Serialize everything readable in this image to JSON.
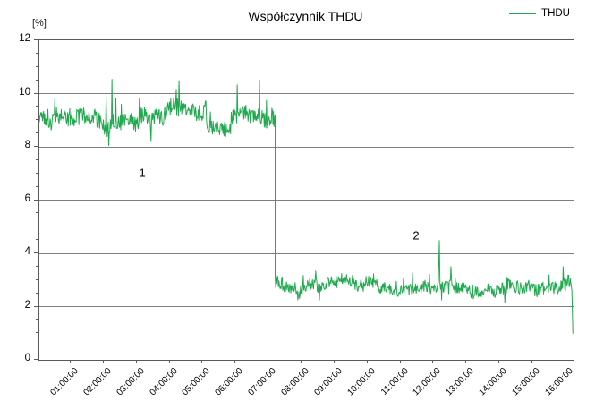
{
  "chart": {
    "title": "Współczynnik THDU",
    "y_unit_label": "[%]",
    "legend": {
      "label": "THDU"
    }
  },
  "chart_data": {
    "type": "line",
    "title": "Współczynnik THDU",
    "ylabel": "[%]",
    "series_name": "THDU",
    "line_color": "#21a94f",
    "grid_color": "#7f7f7f",
    "axis_color": "#595959",
    "legend_position": "top-right",
    "grid": "horizontal-major-only",
    "ylim": [
      0,
      12
    ],
    "yticks": [
      0,
      2,
      4,
      6,
      8,
      10,
      12
    ],
    "y_minor_step": 0.5,
    "grid_values": [
      2,
      4,
      6,
      8,
      10
    ],
    "xlim_hours": [
      0.05,
      16.25
    ],
    "xtick_hours": [
      1,
      2,
      3,
      4,
      5,
      6,
      7,
      8,
      9,
      10,
      11,
      12,
      13,
      14,
      15,
      16
    ],
    "xtick_labels": [
      "01:00:00",
      "02:00:00",
      "03:00:00",
      "04:00:00",
      "05:00:00",
      "06:00:00",
      "07:00:00",
      "08:00:00",
      "09:00:00",
      "10:00:00",
      "11:00:00",
      "12:00:00",
      "13:00:00",
      "14:00:00",
      "15:00:00",
      "16:00:00"
    ],
    "annotations": [
      {
        "label": "1",
        "t": 3.2,
        "v": 7.0
      },
      {
        "label": "2",
        "t": 11.5,
        "v": 4.65
      }
    ],
    "summary": "THDU fluctuates around 9.2% (8.0-11.0%) from 00:00 until about 07:13, then steps down abruptly to about 2.9% (2.2-4.0%) until about 16:13, with an isolated spike to 4.5% near 12:10 and a final dip to about 1% at the end of the record.",
    "seed": 1337,
    "series_spec": {
      "segments": [
        {
          "t0": 0.05,
          "t1": 2.3,
          "n": 140,
          "mean": 9.2,
          "noise": 0.33,
          "wander": 0.18,
          "min": 8.05,
          "max": 10.95,
          "spike_p": 0.045,
          "spike_m": 1.1
        },
        {
          "t0": 2.32,
          "t1": 3.1,
          "n": 48,
          "mean": 8.95,
          "noise": 0.3,
          "wander": 0.15,
          "min": 8.0,
          "max": 10.9,
          "spike_p": 0.05,
          "spike_m": 1.2
        },
        {
          "t0": 3.12,
          "t1": 5.1,
          "n": 120,
          "mean": 9.2,
          "noise": 0.33,
          "wander": 0.15,
          "min": 8.2,
          "max": 10.95,
          "spike_p": 0.045,
          "spike_m": 1.1
        },
        {
          "t0": 5.12,
          "t1": 5.85,
          "n": 45,
          "mean": 8.8,
          "noise": 0.28,
          "wander": 0.12,
          "min": 8.1,
          "max": 10.3,
          "spike_p": 0.03,
          "spike_m": 0.9
        },
        {
          "t0": 5.87,
          "t1": 7.2,
          "n": 82,
          "mean": 9.25,
          "noise": 0.33,
          "wander": 0.15,
          "min": 8.3,
          "max": 10.9,
          "spike_p": 0.045,
          "spike_m": 1.0
        },
        {
          "t0": 7.2,
          "t1": 10.3,
          "n": 190,
          "mean": 2.95,
          "noise": 0.25,
          "wander": 0.12,
          "min": 2.25,
          "max": 3.9,
          "spike_p": 0.04,
          "spike_m": 0.55
        },
        {
          "t0": 10.32,
          "t1": 12.15,
          "n": 110,
          "mean": 2.62,
          "noise": 0.2,
          "wander": 0.1,
          "min": 2.2,
          "max": 3.4,
          "spike_p": 0.03,
          "spike_m": 0.45
        },
        {
          "t0": 12.2,
          "t1": 16.15,
          "n": 240,
          "mean": 2.85,
          "noise": 0.24,
          "wander": 0.12,
          "min": 2.15,
          "max": 3.8,
          "spike_p": 0.04,
          "spike_m": 0.5
        }
      ],
      "extra_points": [
        {
          "t": 12.18,
          "v": 4.48
        },
        {
          "t": 16.2,
          "v": 2.6
        },
        {
          "t": 16.23,
          "v": 1.0
        }
      ]
    }
  }
}
